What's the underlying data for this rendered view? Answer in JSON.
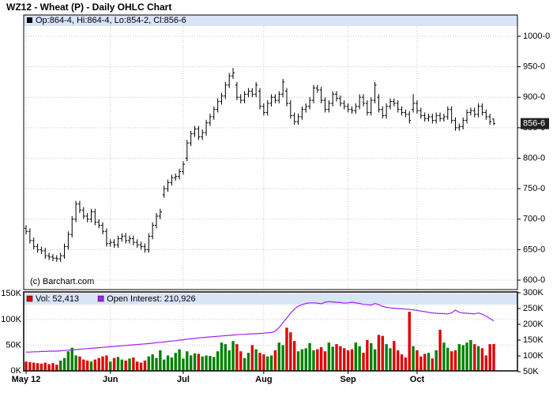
{
  "chart_data": [
    {
      "type": "ohlc",
      "title": "WZ12 - Wheat (P) - Daily OHLC Chart",
      "legend": "Op:864-4, Hi:864-4, Lo:854-2, Cl:856-6",
      "watermark": "(c) Barchart.com",
      "color": "#000000",
      "grid": true,
      "ylim": [
        584.5,
        1016.8
      ],
      "yticks": [
        {
          "value": 600,
          "label": "600-0"
        },
        {
          "value": 650,
          "label": "650-0"
        },
        {
          "value": 700,
          "label": "700-0"
        },
        {
          "value": 750,
          "label": "750-0"
        },
        {
          "value": 800,
          "label": "800-0"
        },
        {
          "value": 850,
          "label": "850-0"
        },
        {
          "value": 900,
          "label": "900-0"
        },
        {
          "value": 950,
          "label": "950-0"
        },
        {
          "value": 1000,
          "label": "1000-0"
        }
      ],
      "last_price": {
        "value": 856.75,
        "label": "856-6"
      },
      "ohlc": [
        [
          685,
          690,
          675,
          680
        ],
        [
          680,
          685,
          660,
          665
        ],
        [
          665,
          670,
          650,
          655
        ],
        [
          655,
          660,
          645,
          650
        ],
        [
          650,
          655,
          643,
          648
        ],
        [
          648,
          653,
          635,
          640
        ],
        [
          640,
          645,
          633,
          638
        ],
        [
          638,
          643,
          631,
          636
        ],
        [
          636,
          641,
          630,
          635
        ],
        [
          635,
          645,
          630,
          640
        ],
        [
          640,
          660,
          635,
          655
        ],
        [
          655,
          680,
          650,
          675
        ],
        [
          675,
          705,
          670,
          700
        ],
        [
          700,
          730,
          695,
          725
        ],
        [
          725,
          730,
          710,
          715
        ],
        [
          715,
          720,
          700,
          705
        ],
        [
          705,
          710,
          695,
          700
        ],
        [
          700,
          717,
          695,
          712
        ],
        [
          712,
          717,
          690,
          695
        ],
        [
          695,
          700,
          685,
          690
        ],
        [
          690,
          695,
          675,
          680
        ],
        [
          680,
          685,
          655,
          660
        ],
        [
          660,
          667,
          655,
          662
        ],
        [
          662,
          667,
          653,
          658
        ],
        [
          658,
          673,
          653,
          668
        ],
        [
          668,
          677,
          663,
          672
        ],
        [
          672,
          677,
          660,
          665
        ],
        [
          665,
          673,
          660,
          668
        ],
        [
          668,
          673,
          657,
          662
        ],
        [
          662,
          667,
          653,
          658
        ],
        [
          658,
          663,
          650,
          655
        ],
        [
          655,
          660,
          645,
          650
        ],
        [
          650,
          677,
          645,
          672
        ],
        [
          672,
          695,
          667,
          690
        ],
        [
          690,
          710,
          685,
          705
        ],
        [
          705,
          717,
          700,
          712
        ],
        [
          740,
          755,
          735,
          750
        ],
        [
          750,
          765,
          745,
          760
        ],
        [
          760,
          773,
          755,
          768
        ],
        [
          768,
          775,
          763,
          770
        ],
        [
          770,
          783,
          765,
          778
        ],
        [
          778,
          795,
          773,
          790
        ],
        [
          800,
          830,
          795,
          825
        ],
        [
          825,
          845,
          820,
          840
        ],
        [
          840,
          853,
          835,
          848
        ],
        [
          848,
          853,
          830,
          835
        ],
        [
          835,
          847,
          830,
          842
        ],
        [
          842,
          863,
          837,
          858
        ],
        [
          858,
          873,
          853,
          868
        ],
        [
          868,
          885,
          863,
          880
        ],
        [
          880,
          898,
          875,
          893
        ],
        [
          893,
          907,
          888,
          902
        ],
        [
          902,
          925,
          897,
          920
        ],
        [
          920,
          940,
          915,
          935
        ],
        [
          935,
          948,
          930,
          940
        ],
        [
          920,
          925,
          895,
          900
        ],
        [
          900,
          905,
          890,
          895
        ],
        [
          895,
          910,
          890,
          905
        ],
        [
          905,
          915,
          900,
          910
        ],
        [
          910,
          915,
          900,
          905
        ],
        [
          905,
          925,
          900,
          920
        ],
        [
          910,
          915,
          880,
          885
        ],
        [
          885,
          890,
          870,
          875
        ],
        [
          875,
          895,
          870,
          890
        ],
        [
          890,
          905,
          885,
          900
        ],
        [
          900,
          905,
          890,
          895
        ],
        [
          895,
          910,
          890,
          905
        ],
        [
          905,
          930,
          900,
          925
        ],
        [
          910,
          915,
          885,
          890
        ],
        [
          890,
          895,
          865,
          870
        ],
        [
          870,
          875,
          855,
          860
        ],
        [
          860,
          873,
          855,
          868
        ],
        [
          868,
          885,
          863,
          880
        ],
        [
          880,
          890,
          875,
          885
        ],
        [
          885,
          900,
          880,
          895
        ],
        [
          895,
          920,
          890,
          915
        ],
        [
          915,
          920,
          907,
          912
        ],
        [
          912,
          917,
          890,
          895
        ],
        [
          895,
          900,
          875,
          880
        ],
        [
          880,
          895,
          875,
          890
        ],
        [
          890,
          910,
          885,
          905
        ],
        [
          905,
          910,
          893,
          898
        ],
        [
          898,
          903,
          885,
          890
        ],
        [
          890,
          895,
          880,
          885
        ],
        [
          885,
          890,
          875,
          880
        ],
        [
          880,
          885,
          873,
          878
        ],
        [
          878,
          890,
          873,
          885
        ],
        [
          885,
          905,
          880,
          900
        ],
        [
          900,
          905,
          885,
          890
        ],
        [
          890,
          895,
          870,
          875
        ],
        [
          875,
          900,
          870,
          895
        ],
        [
          895,
          925,
          890,
          920
        ],
        [
          900,
          905,
          875,
          880
        ],
        [
          880,
          885,
          865,
          870
        ],
        [
          870,
          890,
          865,
          885
        ],
        [
          885,
          898,
          880,
          893
        ],
        [
          893,
          898,
          885,
          890
        ],
        [
          890,
          895,
          875,
          880
        ],
        [
          880,
          885,
          870,
          875
        ],
        [
          875,
          880,
          867,
          872
        ],
        [
          872,
          877,
          857,
          862
        ],
        [
          880,
          905,
          875,
          890
        ],
        [
          890,
          895,
          873,
          878
        ],
        [
          878,
          883,
          865,
          870
        ],
        [
          870,
          875,
          860,
          865
        ],
        [
          865,
          873,
          860,
          868
        ],
        [
          868,
          873,
          857,
          862
        ],
        [
          862,
          875,
          857,
          870
        ],
        [
          870,
          875,
          860,
          865
        ],
        [
          865,
          873,
          860,
          868
        ],
        [
          868,
          885,
          863,
          880
        ],
        [
          880,
          885,
          857,
          862
        ],
        [
          862,
          867,
          845,
          850
        ],
        [
          850,
          857,
          845,
          852
        ],
        [
          852,
          867,
          847,
          862
        ],
        [
          862,
          880,
          857,
          875
        ],
        [
          875,
          883,
          870,
          878
        ],
        [
          878,
          883,
          867,
          872
        ],
        [
          872,
          890,
          867,
          885
        ],
        [
          885,
          890,
          870,
          875
        ],
        [
          875,
          880,
          863,
          868
        ],
        [
          868,
          873,
          855,
          860
        ],
        [
          864.5,
          864.5,
          854.25,
          856.75
        ]
      ]
    },
    {
      "type": "bar",
      "grid": true,
      "up_color": "#008000",
      "ylim": [
        0,
        152000
      ],
      "yticks": [
        {
          "value": 0,
          "label": "0K"
        },
        {
          "value": 50000,
          "label": "50K"
        },
        {
          "value": 100000,
          "label": "100K"
        },
        {
          "value": 150000,
          "label": "150K"
        }
      ],
      "y2lim": [
        52500,
        300000
      ],
      "y2ticks": [
        {
          "value": 50000,
          "label": "50K"
        },
        {
          "value": 100000,
          "label": "100K"
        },
        {
          "value": 150000,
          "label": "150K"
        },
        {
          "value": 200000,
          "label": "200K"
        },
        {
          "value": 250000,
          "label": "250K"
        },
        {
          "value": 300000,
          "label": "300K"
        }
      ],
      "xticks": [
        {
          "value": 0,
          "label": "May 12"
        },
        {
          "value": 22,
          "label": "Jun"
        },
        {
          "value": 41,
          "label": "Jul"
        },
        {
          "value": 62,
          "label": "Aug"
        },
        {
          "value": 84,
          "label": "Sep"
        },
        {
          "value": 102,
          "label": "Oct"
        }
      ],
      "series": [
        {
          "name": "Vol: 52,413",
          "color": "#e00000",
          "values": [
            18000,
            17000,
            16000,
            15000,
            14000,
            16000,
            13000,
            15000,
            12000,
            20000,
            25000,
            38000,
            45000,
            30000,
            28000,
            22000,
            20000,
            18000,
            22000,
            25000,
            28000,
            30000,
            18000,
            25000,
            27000,
            22000,
            20000,
            24000,
            26000,
            18000,
            16000,
            20000,
            28000,
            32000,
            25000,
            40000,
            22000,
            30000,
            26000,
            35000,
            42000,
            24000,
            38000,
            30000,
            34000,
            33000,
            28000,
            30000,
            29000,
            27000,
            38000,
            55000,
            52000,
            40000,
            58000,
            52000,
            38000,
            25000,
            35000,
            50000,
            42000,
            35000,
            32000,
            28000,
            30000,
            40000,
            55000,
            50000,
            84000,
            75000,
            58000,
            38000,
            42000,
            44000,
            54000,
            40000,
            42000,
            46000,
            38000,
            55000,
            47000,
            52000,
            48000,
            44000,
            40000,
            42000,
            55000,
            48000,
            35000,
            60000,
            54000,
            42000,
            70000,
            68000,
            52000,
            44000,
            58000,
            40000,
            32000,
            26000,
            115000,
            48000,
            40000,
            28000,
            33000,
            35000,
            24000,
            40000,
            80000,
            55000,
            45000,
            38000,
            40000,
            52000,
            50000,
            55000,
            60000,
            52000,
            48000,
            44000,
            30000,
            52000,
            52413
          ]
        },
        {
          "name": "Open Interest: 210,926",
          "color": "#a020f0",
          "axis": "y2",
          "values": [
            112000,
            112000,
            113000,
            113000,
            114000,
            114000,
            115000,
            115000,
            115000,
            116000,
            117000,
            118000,
            119000,
            120000,
            121000,
            122000,
            123000,
            124000,
            125000,
            126000,
            127000,
            128000,
            129000,
            130000,
            131000,
            132000,
            133000,
            134000,
            135000,
            136000,
            137000,
            138000,
            139000,
            140000,
            142000,
            143000,
            144000,
            146000,
            147000,
            148000,
            150000,
            151000,
            153000,
            154000,
            155000,
            157000,
            158000,
            159000,
            160000,
            161000,
            162000,
            163000,
            164000,
            165000,
            166000,
            167000,
            168000,
            168000,
            169000,
            170000,
            170000,
            171000,
            172000,
            173000,
            174000,
            178000,
            190000,
            205000,
            220000,
            235000,
            248000,
            258000,
            262000,
            266000,
            268000,
            268000,
            267000,
            265000,
            270000,
            272000,
            271000,
            270000,
            269000,
            267000,
            268000,
            270000,
            268000,
            266000,
            263000,
            262000,
            261000,
            266000,
            262000,
            257000,
            254000,
            252000,
            251000,
            250000,
            249000,
            248000,
            247000,
            246000,
            244000,
            242000,
            240000,
            238000,
            236000,
            235000,
            234000,
            234000,
            233000,
            236000,
            245000,
            238000,
            236000,
            235000,
            234000,
            233000,
            236000,
            232000,
            226000,
            218000,
            210926
          ]
        }
      ]
    }
  ]
}
